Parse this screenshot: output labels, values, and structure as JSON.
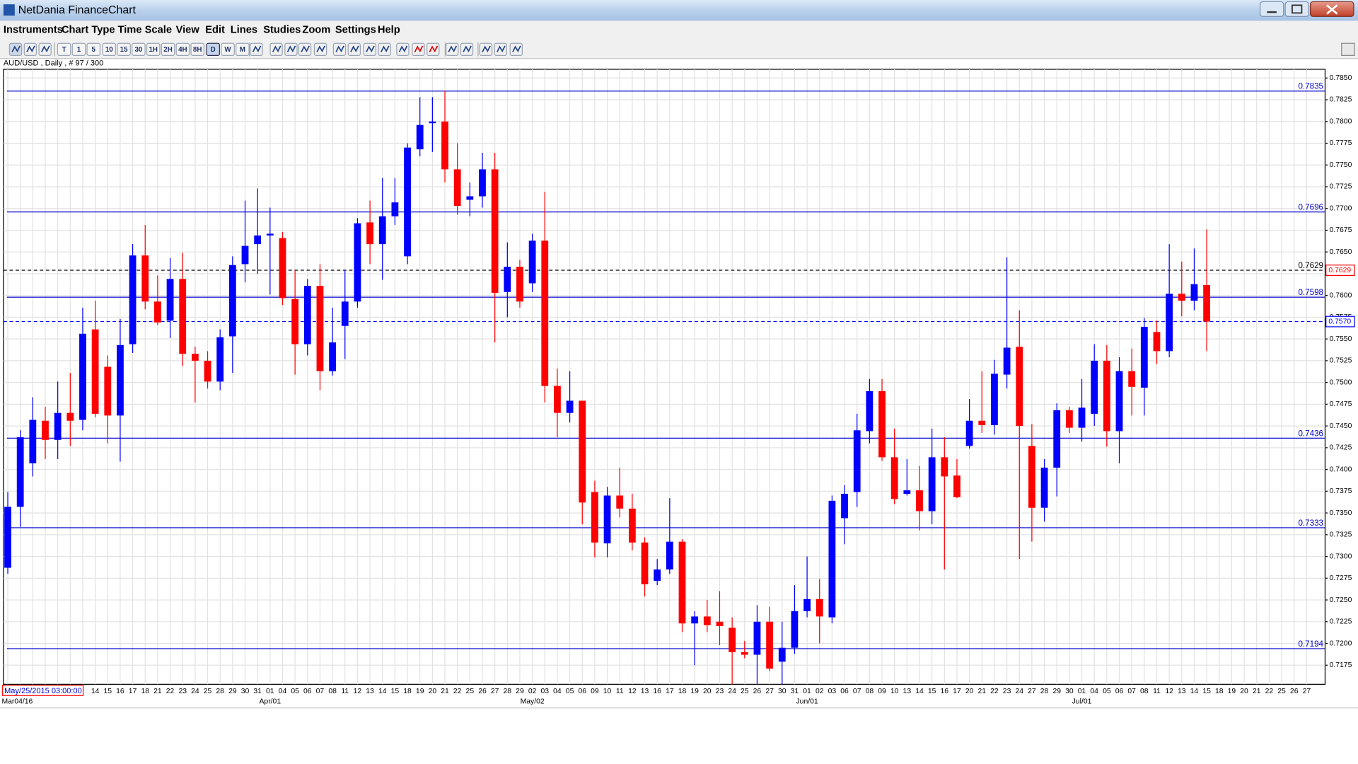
{
  "window": {
    "title": "NetDania FinanceChart"
  },
  "menu": [
    "Instruments",
    "Chart Type",
    "Time Scale",
    "View",
    "Edit",
    "Lines",
    "Studies",
    "Zoom",
    "Settings",
    "Help"
  ],
  "toolbar": {
    "buttons": [
      "T",
      "1",
      "5",
      "10",
      "15",
      "30",
      "1H",
      "2H",
      "4H",
      "8H",
      "D",
      "W",
      "M"
    ]
  },
  "chart_info": "AUD/USD , Daily , # 97 / 300",
  "cursor_time": "May/25/2015 03:00:00",
  "chart_data": {
    "type": "candlestick",
    "x_major_labels": [
      "Mar04/16",
      "Apr/01",
      "May/02",
      "Jun/01",
      "Jul/01"
    ],
    "categories": [
      null,
      null,
      null,
      null,
      null,
      null,
      null,
      "14",
      "15",
      "16",
      "17",
      "18",
      "21",
      "22",
      "23",
      "24",
      "25",
      "28",
      "29",
      "30",
      "31",
      "01",
      "04",
      "05",
      "06",
      "07",
      "08",
      "11",
      "12",
      "13",
      "14",
      "15",
      "18",
      "19",
      "20",
      "21",
      "22",
      "25",
      "26",
      "27",
      "28",
      "29",
      "02",
      "03",
      "04",
      "05",
      "06",
      "09",
      "10",
      "11",
      "12",
      "13",
      "16",
      "17",
      "18",
      "19",
      "20",
      "23",
      "24",
      "25",
      "26",
      "27",
      "30",
      "31",
      "01",
      "02",
      "03",
      "06",
      "07",
      "08",
      "09",
      "10",
      "13",
      "14",
      "15",
      "16",
      "17",
      "20",
      "21",
      "22",
      "23",
      "24",
      "27",
      "28",
      "29",
      "30",
      "01",
      "04",
      "05",
      "06",
      "07",
      "08",
      "11",
      "12",
      "13",
      "14",
      "15",
      "18",
      "19",
      "20",
      "21",
      "22",
      "25",
      "26",
      "27"
    ],
    "open": [
      0.7287,
      0.7357,
      0.7407,
      0.7456,
      0.7434,
      0.7465,
      0.7457,
      0.7561,
      0.7518,
      0.7462,
      0.7544,
      0.7646,
      0.7593,
      0.7571,
      0.7619,
      0.7533,
      0.7525,
      0.7501,
      0.7553,
      0.7636,
      0.7659,
      0.7669,
      0.7666,
      0.7596,
      0.7544,
      0.7611,
      0.7513,
      0.7565,
      0.7593,
      0.7684,
      0.7659,
      0.7691,
      0.7645,
      0.7768,
      0.7798,
      0.78,
      0.7745,
      0.771,
      0.7714,
      0.7745,
      0.7604,
      0.7633,
      0.7614,
      0.7663,
      0.7496,
      0.7465,
      0.7479,
      0.7374,
      0.7315,
      0.737,
      0.7355,
      0.7316,
      0.7272,
      0.7285,
      0.7317,
      0.7223,
      0.7231,
      0.7225,
      0.7218,
      0.719,
      0.7187,
      0.7225,
      0.7179,
      0.7195,
      0.7237,
      0.7251,
      0.723,
      0.7344,
      0.7374,
      0.7444,
      0.749,
      0.7414,
      0.7372,
      0.7376,
      0.7352,
      0.7414,
      0.7393,
      0.7427,
      0.7456,
      0.7451,
      0.7509,
      0.7541,
      0.7427,
      0.7356,
      0.7402,
      0.7468,
      0.7448,
      0.7464,
      0.7525,
      0.7444,
      0.7513,
      0.7494,
      0.7558,
      0.7536,
      0.7602,
      0.7594,
      0.7612,
      null,
      null,
      null,
      null,
      null,
      null,
      null,
      null
    ],
    "high": [
      0.7374,
      0.7445,
      0.7483,
      0.7472,
      0.7501,
      0.7511,
      0.7586,
      0.7594,
      0.7531,
      0.7573,
      0.7659,
      0.7681,
      0.7623,
      0.7643,
      0.7649,
      0.7541,
      0.7536,
      0.7561,
      0.7645,
      0.7709,
      0.7723,
      0.7701,
      0.7673,
      0.7629,
      0.7619,
      0.7636,
      0.7586,
      0.7629,
      0.7689,
      0.7709,
      0.7735,
      0.7735,
      0.7775,
      0.7828,
      0.7828,
      0.7835,
      0.7775,
      0.773,
      0.7764,
      0.7764,
      0.7661,
      0.7641,
      0.7671,
      0.7719,
      0.7516,
      0.7513,
      0.7479,
      0.7387,
      0.738,
      0.7402,
      0.7372,
      0.7322,
      0.7297,
      0.7367,
      0.732,
      0.7237,
      0.725,
      0.726,
      0.723,
      0.7203,
      0.7244,
      0.7242,
      0.7225,
      0.7267,
      0.73,
      0.7274,
      0.737,
      0.7382,
      0.7464,
      0.7504,
      0.7504,
      0.7447,
      0.7412,
      0.7404,
      0.7447,
      0.7437,
      0.7412,
      0.7481,
      0.7513,
      0.7526,
      0.7644,
      0.7583,
      0.7452,
      0.7412,
      0.7476,
      0.7472,
      0.7504,
      0.7544,
      0.7543,
      0.7529,
      0.7539,
      0.7574,
      0.7571,
      0.7659,
      0.7639,
      0.7654,
      0.7676,
      null,
      null,
      null,
      null,
      null,
      null,
      null,
      null
    ],
    "low": [
      0.728,
      0.7334,
      0.7392,
      0.7412,
      0.7412,
      0.7427,
      0.7445,
      0.746,
      0.743,
      0.7409,
      0.7534,
      0.7584,
      0.7566,
      0.7551,
      0.7519,
      0.7477,
      0.7493,
      0.7491,
      0.7511,
      0.7615,
      0.7625,
      0.7601,
      0.7589,
      0.7509,
      0.7531,
      0.7491,
      0.7508,
      0.7527,
      0.7586,
      0.7636,
      0.7618,
      0.7681,
      0.7636,
      0.776,
      0.7765,
      0.773,
      0.7693,
      0.7691,
      0.7701,
      0.7546,
      0.7575,
      0.7586,
      0.7604,
      0.7477,
      0.7437,
      0.7454,
      0.7337,
      0.7299,
      0.7299,
      0.7345,
      0.7307,
      0.7254,
      0.7267,
      0.728,
      0.7213,
      0.7175,
      0.7213,
      0.7198,
      0.7153,
      0.7183,
      0.7153,
      0.7168,
      0.7153,
      0.7188,
      0.723,
      0.72,
      0.7223,
      0.7314,
      0.7357,
      0.743,
      0.741,
      0.736,
      0.737,
      0.733,
      0.7337,
      0.7285,
      0.7367,
      0.7424,
      0.7442,
      0.744,
      0.7493,
      0.7297,
      0.7317,
      0.734,
      0.7369,
      0.7442,
      0.7432,
      0.745,
      0.7426,
      0.7407,
      0.7462,
      0.7462,
      0.7521,
      0.7529,
      0.7576,
      0.7583,
      0.7536,
      null,
      null,
      null,
      null,
      null,
      null,
      null,
      null
    ],
    "close": [
      0.7357,
      0.7437,
      0.7457,
      0.7434,
      0.7465,
      0.7456,
      0.7556,
      0.7464,
      0.7462,
      0.7543,
      0.7646,
      0.7593,
      0.7569,
      0.7619,
      0.7533,
      0.7525,
      0.7501,
      0.7552,
      0.7635,
      0.7657,
      0.7669,
      0.7671,
      0.7597,
      0.7544,
      0.7611,
      0.7513,
      0.7546,
      0.7593,
      0.7683,
      0.7659,
      0.7691,
      0.7707,
      0.777,
      0.7796,
      0.78,
      0.7745,
      0.7703,
      0.7714,
      0.7745,
      0.7603,
      0.7633,
      0.7593,
      0.7663,
      0.7496,
      0.7465,
      0.7479,
      0.7362,
      0.7316,
      0.737,
      0.7355,
      0.7316,
      0.7268,
      0.7285,
      0.7317,
      0.7223,
      0.7231,
      0.7221,
      0.722,
      0.719,
      0.7187,
      0.7225,
      0.7171,
      0.7195,
      0.7237,
      0.7251,
      0.7231,
      0.7364,
      0.7372,
      0.7445,
      0.749,
      0.7414,
      0.7366,
      0.7376,
      0.7352,
      0.7414,
      0.7392,
      0.7368,
      0.7456,
      0.7451,
      0.751,
      0.754,
      0.745,
      0.7356,
      0.7402,
      0.7468,
      0.7448,
      0.7471,
      0.7525,
      0.7444,
      0.7513,
      0.7495,
      0.7564,
      0.7536,
      0.7602,
      0.7594,
      0.7613,
      0.757,
      null,
      null,
      null,
      null,
      null,
      null,
      null,
      null
    ],
    "up_color": "#0000ff",
    "down_color": "#ff0000",
    "ylim": [
      0.7153,
      0.786
    ],
    "yticks": [
      {
        "value": 0.785,
        "label": "0.7850"
      },
      0.7825,
      {
        "value": 0.78,
        "label": "0.7800"
      },
      0.7775,
      {
        "value": 0.775,
        "label": "0.7750"
      },
      0.7725,
      {
        "value": 0.77,
        "label": "0.7700"
      },
      0.7675,
      {
        "value": 0.765,
        "label": "0.7650"
      },
      0.7625,
      {
        "value": 0.76,
        "label": "0.7600"
      },
      0.7575,
      {
        "value": 0.755,
        "label": "0.7550"
      },
      0.7525,
      {
        "value": 0.75,
        "label": "0.7500"
      },
      0.7475,
      {
        "value": 0.745,
        "label": "0.7450"
      },
      0.7425,
      {
        "value": 0.74,
        "label": "0.7400"
      },
      0.7375,
      {
        "value": 0.735,
        "label": "0.7350"
      },
      0.7325,
      {
        "value": 0.73,
        "label": "0.7300"
      },
      0.7275,
      {
        "value": 0.725,
        "label": "0.7250"
      },
      0.7225,
      {
        "value": 0.72,
        "label": "0.7200"
      },
      0.7175
    ],
    "grid": true,
    "levels": [
      0.7835,
      0.7696,
      0.7598,
      0.7436,
      0.7333,
      0.7194
    ],
    "level_color": "#0000cc",
    "marker_lines": [
      {
        "value": 0.7629,
        "label": "0.7629",
        "color": "#000000",
        "box_color": "#ff0000"
      },
      {
        "value": 0.757,
        "label": "0.7570",
        "color": "#0000ff",
        "box_color": "#0000ff"
      }
    ]
  }
}
